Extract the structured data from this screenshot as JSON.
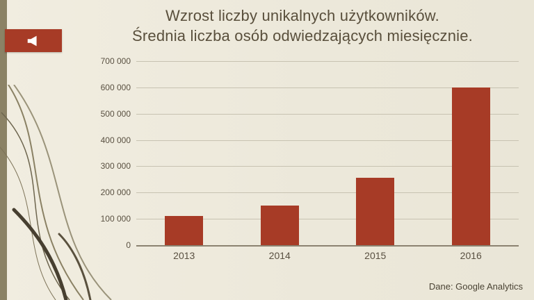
{
  "slide": {
    "title_line1": "Wzrost liczby unikalnych użytkowników.",
    "title_line2": "Średnia liczba osób odwiedzających miesięcznie.",
    "source": "Dane: Google Analytics"
  },
  "icons": {
    "megaphone": "megaphone-speaker-pointing-left"
  },
  "colors": {
    "bar": "#a73b26",
    "ribbon": "#a73b26",
    "stripe": "#8b8265",
    "title": "#594f3c",
    "axis_text": "#595041",
    "gridline": "#c7c2b1",
    "background": "#ece8da"
  },
  "chart_data": {
    "type": "bar",
    "categories": [
      "2013",
      "2014",
      "2015",
      "2016"
    ],
    "values": [
      110000,
      150000,
      255000,
      600000
    ],
    "title": "Wzrost liczby unikalnych użytkowników. Średnia liczba osób odwiedzających miesięcznie.",
    "xlabel": "",
    "ylabel": "",
    "ylim": [
      0,
      700000
    ],
    "ytick_step": 100000,
    "ytick_labels": [
      "0",
      "100 000",
      "200 000",
      "300 000",
      "400 000",
      "500 000",
      "600 000",
      "700 000"
    ],
    "grid": true,
    "legend": "none",
    "bar_color": "#a73b26"
  }
}
